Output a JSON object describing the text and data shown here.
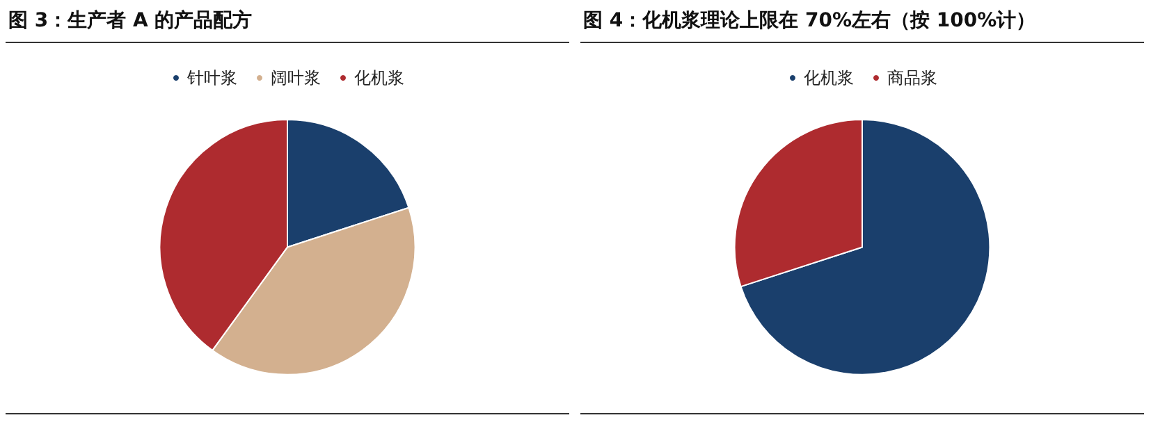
{
  "chart_data": [
    {
      "type": "pie",
      "title": "图 3：生产者 A 的产品配方",
      "categories": [
        "针叶浆",
        "阔叶浆",
        "化机浆"
      ],
      "values": [
        20,
        40,
        40
      ],
      "colors": [
        "#1a3f6c",
        "#d3b08f",
        "#ae2b2f"
      ],
      "legend": "top"
    },
    {
      "type": "pie",
      "title": "图 4：化机浆理论上限在 70%左右（按 100%计）",
      "categories": [
        "化机浆",
        "商品浆"
      ],
      "values": [
        70,
        30
      ],
      "colors": [
        "#1a3f6c",
        "#ae2b2f"
      ],
      "legend": "top"
    }
  ]
}
